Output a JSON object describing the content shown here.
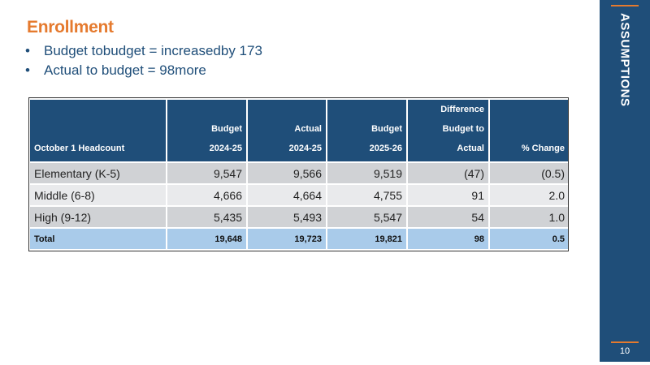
{
  "title": "Enrollment",
  "bullets": [
    "Budget tobudget = increasedby 173",
    "Actual to budget = 98more"
  ],
  "bullet_char": "•",
  "sidebar": {
    "label": "ASSUMPTIONS",
    "page": "10"
  },
  "table": {
    "headers": [
      [
        "October 1 Headcount"
      ],
      [
        "Budget",
        "2024-25"
      ],
      [
        "Actual",
        "2024-25"
      ],
      [
        "Budget",
        "2025-26"
      ],
      [
        "Difference",
        "Budget to",
        "Actual"
      ],
      [
        "% Change"
      ]
    ],
    "rows": [
      [
        "Elementary (K-5)",
        "9,547",
        "9,566",
        "9,519",
        "(47)",
        "(0.5)"
      ],
      [
        "Middle (6-8)",
        "4,666",
        "4,664",
        "4,755",
        "91",
        "2.0"
      ],
      [
        "High (9-12)",
        "5,435",
        "5,493",
        "5,547",
        "54",
        "1.0"
      ]
    ],
    "total": [
      "Total",
      "19,648",
      "19,723",
      "19,821",
      "98",
      "0.5"
    ]
  },
  "colors": {
    "navy": "#1F4E79",
    "orange": "#E57A2E",
    "row_light": "#E9EAEC",
    "row_dark": "#D0D2D5",
    "total_bg": "#A9CBEA"
  }
}
